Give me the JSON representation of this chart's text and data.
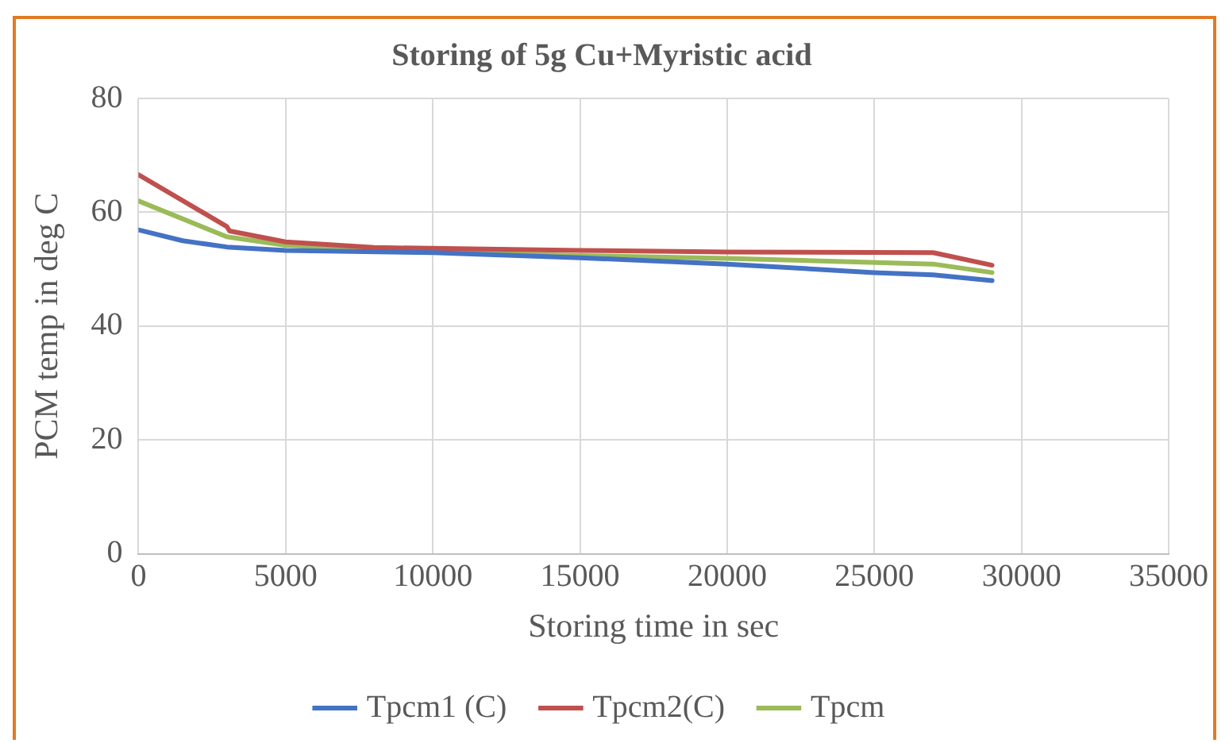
{
  "chart_data": {
    "type": "line",
    "title": "Storing of 5g Cu+Myristic acid",
    "xlabel": "Storing time in sec",
    "ylabel": "PCM temp in deg C",
    "xlim": [
      0,
      35000
    ],
    "xticks": [
      0,
      5000,
      10000,
      15000,
      20000,
      25000,
      30000,
      35000
    ],
    "ylim": [
      0,
      80
    ],
    "yticks": [
      0,
      20,
      40,
      60,
      80
    ],
    "grid": true,
    "legend": "bottom",
    "marker": "none",
    "line_style": "solid",
    "series": [
      {
        "name": "Tpcm1 (C)",
        "color": "#4472c4",
        "x": [
          0,
          1500,
          3000,
          5000,
          10000,
          15000,
          20000,
          25000,
          27000,
          29000
        ],
        "values": [
          56.9,
          55.0,
          53.9,
          53.3,
          52.9,
          52.0,
          50.9,
          49.4,
          49.0,
          48.0
        ]
      },
      {
        "name": "Tpcm2(C)",
        "color": "#c0504d",
        "x": [
          0,
          3000,
          3100,
          5000,
          8000,
          15000,
          20000,
          27000,
          29000
        ],
        "values": [
          66.6,
          57.5,
          56.7,
          54.8,
          53.8,
          53.3,
          53.0,
          52.9,
          50.7
        ]
      },
      {
        "name": "Tpcm",
        "color": "#9bbb59",
        "x": [
          0,
          3000,
          5000,
          10000,
          15000,
          20000,
          27000,
          29000
        ],
        "values": [
          62.0,
          55.7,
          54.2,
          53.0,
          52.4,
          51.9,
          50.9,
          49.4
        ]
      }
    ]
  }
}
